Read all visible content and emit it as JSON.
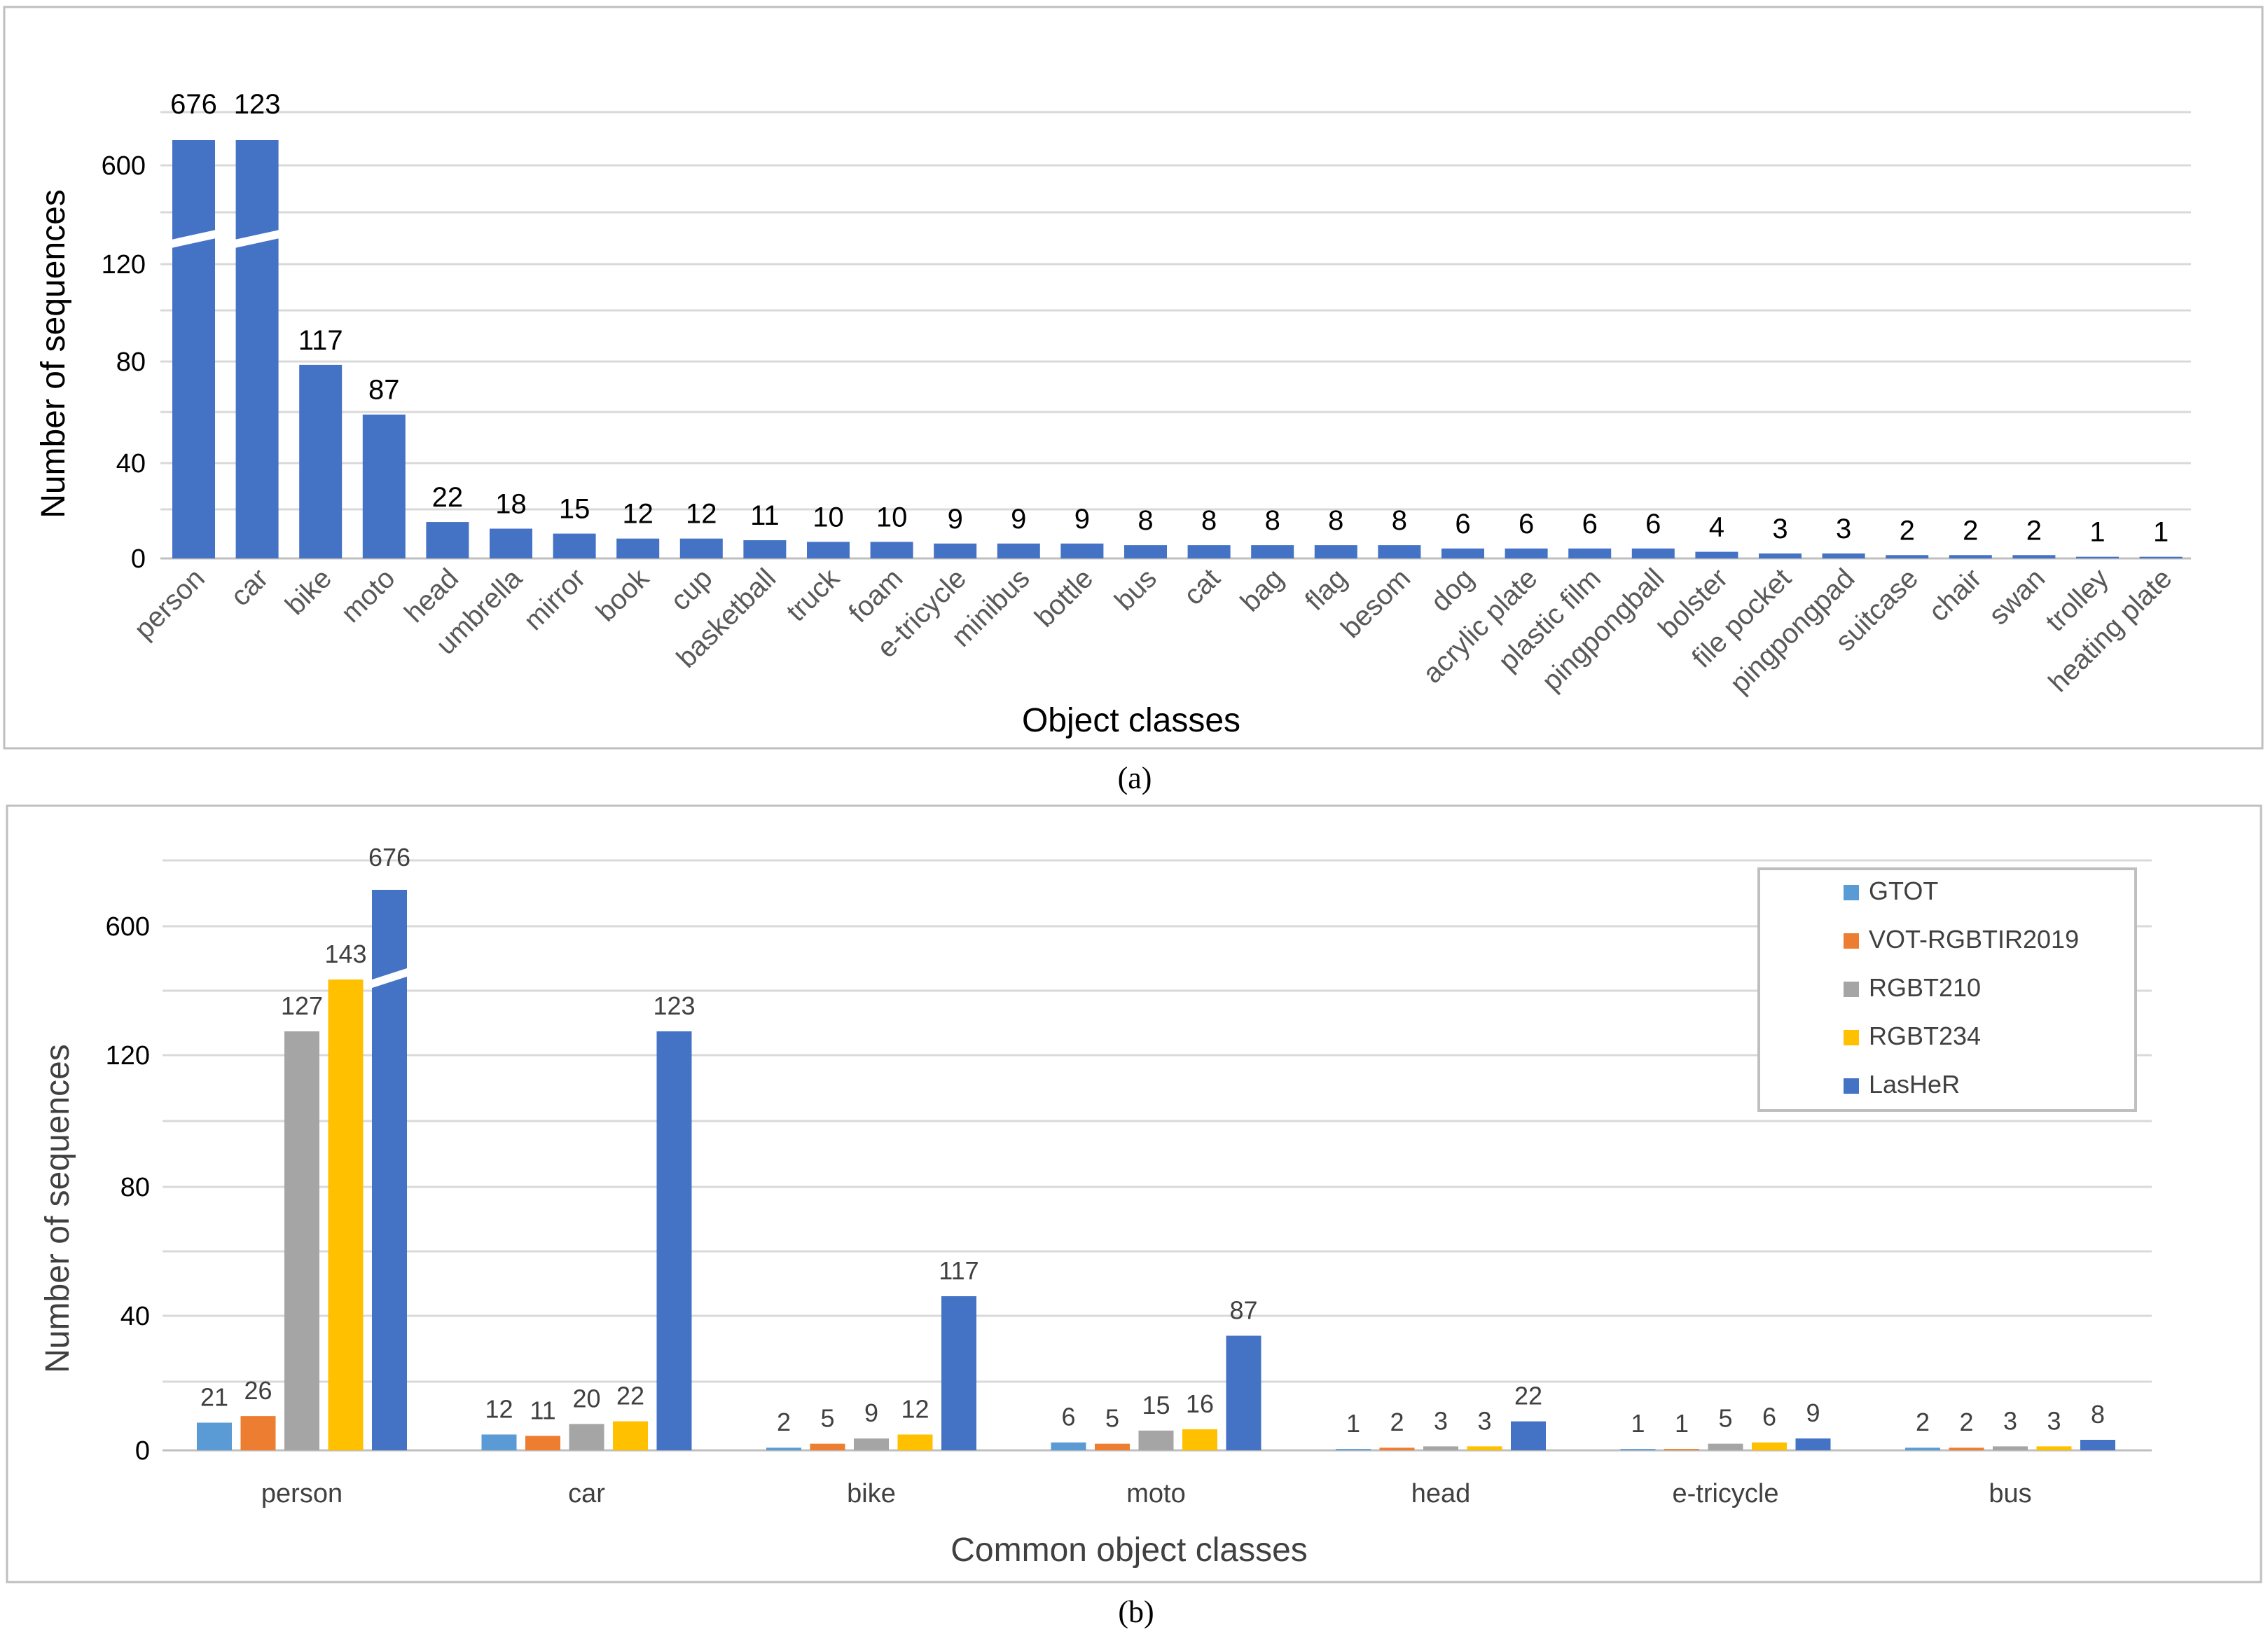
{
  "chart_data": [
    {
      "panel": "(a)",
      "type": "bar",
      "xlabel": "Object classes",
      "ylabel": "Number of sequences",
      "y_ticks": [
        "0",
        "40",
        "80",
        "120",
        "600"
      ],
      "axis_break": {
        "lower_max": 120,
        "upper_tick": 600
      },
      "color": "#4472C4",
      "categories": [
        "person",
        "car",
        "bike",
        "moto",
        "head",
        "umbrella",
        "mirror",
        "book",
        "cup",
        "basketball",
        "truck",
        "foam",
        "e-tricycle",
        "minibus",
        "bottle",
        "bus",
        "cat",
        "bag",
        "flag",
        "besom",
        "dog",
        "acrylic plate",
        "plastic film",
        "pingpongball",
        "bolster",
        "file pocket",
        "pingpongpad",
        "suitcase",
        "chair",
        "swan",
        "trolley",
        "heating plate"
      ],
      "values": [
        676,
        123,
        117,
        87,
        22,
        18,
        15,
        12,
        12,
        11,
        10,
        10,
        9,
        9,
        9,
        8,
        8,
        8,
        8,
        8,
        6,
        6,
        6,
        6,
        4,
        3,
        3,
        2,
        2,
        2,
        1,
        1
      ]
    },
    {
      "panel": "(b)",
      "type": "bar",
      "xlabel": "Common object classes",
      "ylabel": "Number of sequences",
      "y_ticks": [
        "0",
        "40",
        "80",
        "120",
        "600"
      ],
      "axis_break": {
        "lower_max": 120,
        "upper_tick": 600
      },
      "legend_position": "top-right",
      "categories": [
        "person",
        "car",
        "bike",
        "moto",
        "head",
        "e-tricycle",
        "bus"
      ],
      "series": [
        {
          "name": "GTOT",
          "color": "#5B9BD5",
          "values": [
            21,
            12,
            2,
            6,
            1,
            1,
            2
          ]
        },
        {
          "name": "VOT-RGBTIR2019",
          "color": "#ED7D31",
          "values": [
            26,
            11,
            5,
            5,
            2,
            1,
            2
          ]
        },
        {
          "name": "RGBT210",
          "color": "#A5A5A5",
          "values": [
            127,
            20,
            9,
            15,
            3,
            5,
            3
          ]
        },
        {
          "name": "RGBT234",
          "color": "#FFC000",
          "values": [
            143,
            22,
            12,
            16,
            3,
            6,
            3
          ]
        },
        {
          "name": "LasHeR",
          "color": "#4472C4",
          "values": [
            676,
            123,
            117,
            87,
            22,
            9,
            8
          ]
        }
      ]
    }
  ],
  "captions": {
    "a": "(a)",
    "b": "(b)"
  }
}
